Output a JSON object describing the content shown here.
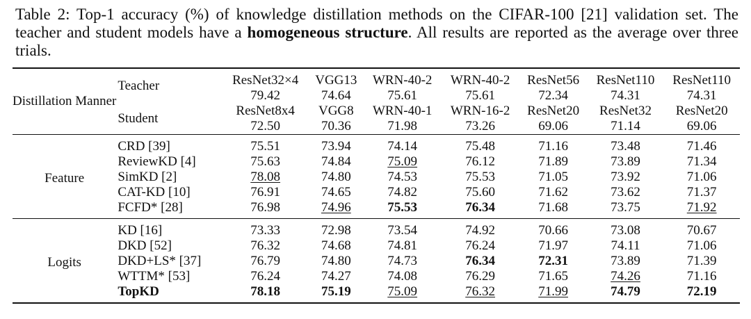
{
  "caption": {
    "prefix": "Table 2: Top-1 accuracy (%) of knowledge distillation methods on the CIFAR-100 [21] validation set. The teacher and student models have a ",
    "bold": "homogeneous structure",
    "suffix": ". All results are reported as the average over three trials."
  },
  "header": {
    "manner_label": "Distillation Manner",
    "teacher_label": "Teacher",
    "student_label": "Student",
    "columns": [
      {
        "teacher": "ResNet32×4",
        "teacher_acc": "79.42",
        "student": "ResNet8x4",
        "student_acc": "72.50"
      },
      {
        "teacher": "VGG13",
        "teacher_acc": "74.64",
        "student": "VGG8",
        "student_acc": "70.36"
      },
      {
        "teacher": "WRN-40-2",
        "teacher_acc": "75.61",
        "student": "WRN-40-1",
        "student_acc": "71.98"
      },
      {
        "teacher": "WRN-40-2",
        "teacher_acc": "75.61",
        "student": "WRN-16-2",
        "student_acc": "73.26"
      },
      {
        "teacher": "ResNet56",
        "teacher_acc": "72.34",
        "student": "ResNet20",
        "student_acc": "69.06"
      },
      {
        "teacher": "ResNet110",
        "teacher_acc": "74.31",
        "student": "ResNet32",
        "student_acc": "71.14"
      },
      {
        "teacher": "ResNet110",
        "teacher_acc": "74.31",
        "student": "ResNet20",
        "student_acc": "69.06"
      }
    ]
  },
  "sections": [
    {
      "name": "Feature",
      "rows": [
        {
          "method": "CRD [39]",
          "bold_method": false,
          "values": [
            "75.51",
            "73.94",
            "74.14",
            "75.48",
            "71.16",
            "73.48",
            "71.46"
          ],
          "underline": [],
          "bold": []
        },
        {
          "method": "ReviewKD [4]",
          "bold_method": false,
          "values": [
            "75.63",
            "74.84",
            "75.09",
            "76.12",
            "71.89",
            "73.89",
            "71.34"
          ],
          "underline": [
            2
          ],
          "bold": []
        },
        {
          "method": "SimKD [2]",
          "bold_method": false,
          "values": [
            "78.08",
            "74.80",
            "74.53",
            "75.53",
            "71.05",
            "73.92",
            "71.06"
          ],
          "underline": [
            0
          ],
          "bold": []
        },
        {
          "method": "CAT-KD [10]",
          "bold_method": false,
          "values": [
            "76.91",
            "74.65",
            "74.82",
            "75.60",
            "71.62",
            "73.62",
            "71.37"
          ],
          "underline": [],
          "bold": []
        },
        {
          "method": "FCFD* [28]",
          "bold_method": false,
          "values": [
            "76.98",
            "74.96",
            "75.53",
            "76.34",
            "71.68",
            "73.75",
            "71.92"
          ],
          "underline": [
            1,
            6
          ],
          "bold": [
            2,
            3
          ]
        }
      ]
    },
    {
      "name": "Logits",
      "rows": [
        {
          "method": "KD [16]",
          "bold_method": false,
          "values": [
            "73.33",
            "72.98",
            "73.54",
            "74.92",
            "70.66",
            "73.08",
            "70.67"
          ],
          "underline": [],
          "bold": []
        },
        {
          "method": "DKD [52]",
          "bold_method": false,
          "values": [
            "76.32",
            "74.68",
            "74.81",
            "76.24",
            "71.97",
            "74.11",
            "71.06"
          ],
          "underline": [],
          "bold": []
        },
        {
          "method": "DKD+LS* [37]",
          "bold_method": false,
          "values": [
            "76.79",
            "74.80",
            "74.73",
            "76.34",
            "72.31",
            "73.89",
            "71.39"
          ],
          "underline": [],
          "bold": [
            3,
            4
          ]
        },
        {
          "method": "WTTM* [53]",
          "bold_method": false,
          "values": [
            "76.24",
            "74.27",
            "74.08",
            "76.29",
            "71.65",
            "74.26",
            "71.16"
          ],
          "underline": [
            5
          ],
          "bold": []
        },
        {
          "method": "TopKD",
          "bold_method": true,
          "values": [
            "78.18",
            "75.19",
            "75.09",
            "76.32",
            "71.99",
            "74.79",
            "72.19"
          ],
          "underline": [
            2,
            3,
            4
          ],
          "bold": [
            0,
            1,
            5,
            6
          ]
        }
      ]
    }
  ]
}
